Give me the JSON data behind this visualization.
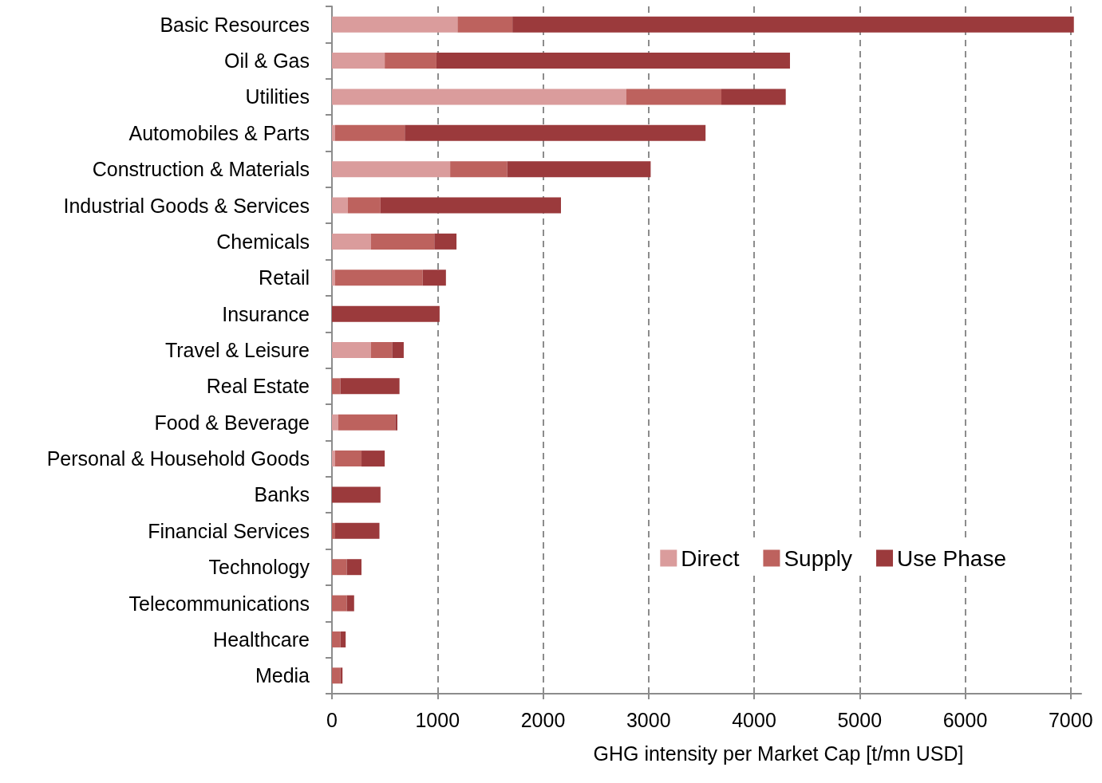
{
  "chart_data": {
    "type": "bar",
    "orientation": "horizontal",
    "stacked": true,
    "categories": [
      "Basic Resources",
      "Oil & Gas",
      "Utilities",
      "Automobiles & Parts",
      "Construction & Materials",
      "Industrial Goods & Services",
      "Chemicals",
      "Retail",
      "Insurance",
      "Travel & Leisure",
      "Real Estate",
      "Food & Beverage",
      "Personal & Household Goods",
      "Banks",
      "Financial Services",
      "Technology",
      "Telecommunications",
      "Healthcare",
      "Media"
    ],
    "series": [
      {
        "name": "Direct",
        "color": "#da9c9c",
        "values": [
          1190,
          500,
          2790,
          30,
          1120,
          150,
          370,
          30,
          0,
          370,
          0,
          60,
          30,
          0,
          0,
          0,
          0,
          0,
          0
        ]
      },
      {
        "name": "Supply",
        "color": "#bd625e",
        "values": [
          520,
          490,
          900,
          660,
          540,
          310,
          600,
          830,
          0,
          200,
          80,
          540,
          250,
          0,
          30,
          140,
          140,
          80,
          80
        ]
      },
      {
        "name": "Use Phase",
        "color": "#9b3a3c",
        "values": [
          5320,
          3350,
          610,
          2850,
          1360,
          1710,
          210,
          220,
          1020,
          110,
          560,
          20,
          220,
          460,
          420,
          140,
          70,
          50,
          20
        ]
      }
    ],
    "xlabel": "GHG intensity per Market Cap [t/mn USD]",
    "xlim": [
      0,
      7100
    ],
    "xticks": [
      0,
      1000,
      2000,
      3000,
      4000,
      5000,
      6000,
      7000
    ],
    "grid": "x",
    "legend": "bottom right"
  }
}
